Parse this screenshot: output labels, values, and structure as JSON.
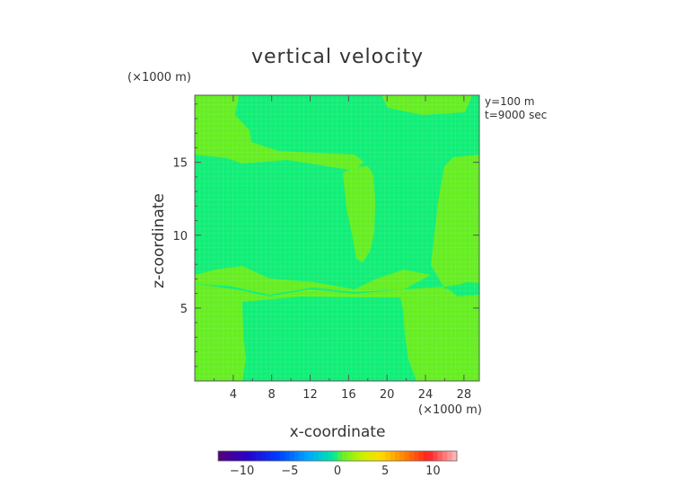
{
  "chart_data": {
    "type": "heatmap",
    "title": "vertical velocity",
    "xlabel": "x-coordinate",
    "ylabel": "z-coordinate",
    "x_unit": "(×1000 m)",
    "y_unit": "(×1000 m)",
    "info_lines": [
      "y=100 m",
      "t=9000 sec"
    ],
    "xlim": [
      0,
      29.6
    ],
    "ylim": [
      0,
      19.6
    ],
    "x_ticks": [
      4,
      8,
      12,
      16,
      20,
      24,
      28
    ],
    "y_ticks": [
      5,
      10,
      15
    ],
    "colorbar": {
      "min": -12.5,
      "max": 12.5,
      "step": 0.5,
      "tick_values": [
        -10,
        -5,
        0,
        5,
        10
      ],
      "tick_labels": [
        "−10",
        "−5",
        "0",
        "5",
        "10"
      ]
    },
    "regions": [
      {
        "level": "0 to 0.5",
        "color": "#66ee22",
        "extent": "background field"
      },
      {
        "level": "-0.5 to 0",
        "color": "#11ee77",
        "extent": "central updraft core and mid column"
      },
      {
        "level": "-0.5 to 0",
        "color": "#11ee77",
        "extent": "top layer above z≈16"
      },
      {
        "level": "0 to 0.5",
        "color": "#66ee22",
        "extent": "tongue near x≈16-20, z≈8.5-16"
      }
    ]
  }
}
